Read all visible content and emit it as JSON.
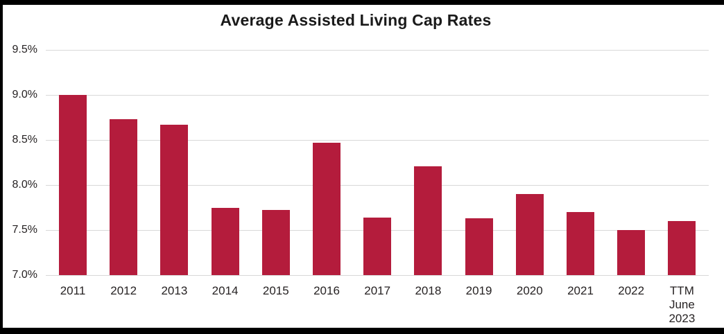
{
  "chart_data": {
    "type": "bar",
    "title": "Average Assisted Living Cap Rates",
    "categories": [
      "2011",
      "2012",
      "2013",
      "2014",
      "2015",
      "2016",
      "2017",
      "2018",
      "2019",
      "2020",
      "2021",
      "2022",
      "TTM\nJune\n2023"
    ],
    "values": [
      9.0,
      8.73,
      8.67,
      7.75,
      7.72,
      8.47,
      7.64,
      8.21,
      7.63,
      7.9,
      7.7,
      7.5,
      7.6
    ],
    "unit": "%",
    "xlabel": "",
    "ylabel": "",
    "ylim": [
      7.0,
      9.5
    ],
    "yticks": [
      9.5,
      9.0,
      8.5,
      8.0,
      7.5,
      7.0
    ],
    "ytick_labels": [
      "9.5%",
      "9.0%",
      "8.5%",
      "8.0%",
      "7.5%",
      "7.0%"
    ],
    "grid": "horizontal",
    "legend": "none",
    "colors": {
      "bar": "#B41C3C",
      "gridline": "#D8D8D8",
      "axis_text": "#262223",
      "title_text": "#1A1A1A",
      "background": "#FFFFFF",
      "frame": "#000000"
    }
  }
}
